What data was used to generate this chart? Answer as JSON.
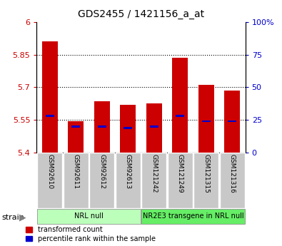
{
  "title": "GDS2455 / 1421156_a_at",
  "samples": [
    "GSM92610",
    "GSM92611",
    "GSM92612",
    "GSM92613",
    "GSM121242",
    "GSM121249",
    "GSM121315",
    "GSM121316"
  ],
  "transformed_counts": [
    5.91,
    5.545,
    5.635,
    5.62,
    5.625,
    5.835,
    5.71,
    5.685
  ],
  "percentile_ranks": [
    28,
    20,
    20,
    19,
    20,
    28,
    24,
    24
  ],
  "y_min": 5.4,
  "y_max": 6.0,
  "y_ticks": [
    5.4,
    5.55,
    5.7,
    5.85,
    6.0
  ],
  "y_tick_labels": [
    "5.4",
    "5.55",
    "5.7",
    "5.85",
    "6"
  ],
  "right_y_ticks": [
    0,
    25,
    50,
    75,
    100
  ],
  "right_y_tick_labels": [
    "0",
    "25",
    "50",
    "75",
    "100%"
  ],
  "bar_color": "#cc0000",
  "blue_color": "#0000cc",
  "bar_width": 0.6,
  "groups": [
    {
      "label": "NRL null",
      "start": 0,
      "end": 3,
      "color": "#bbffbb"
    },
    {
      "label": "NR2E3 transgene in NRL null",
      "start": 4,
      "end": 7,
      "color": "#66ee66"
    }
  ],
  "legend_items": [
    {
      "color": "#cc0000",
      "label": "transformed count"
    },
    {
      "color": "#0000cc",
      "label": "percentile rank within the sample"
    }
  ],
  "tick_label_color_left": "#cc0000",
  "tick_label_color_right": "#0000cc",
  "sample_box_color": "#c8c8c8",
  "grid_linestyle": ":",
  "grid_linewidth": 0.8
}
